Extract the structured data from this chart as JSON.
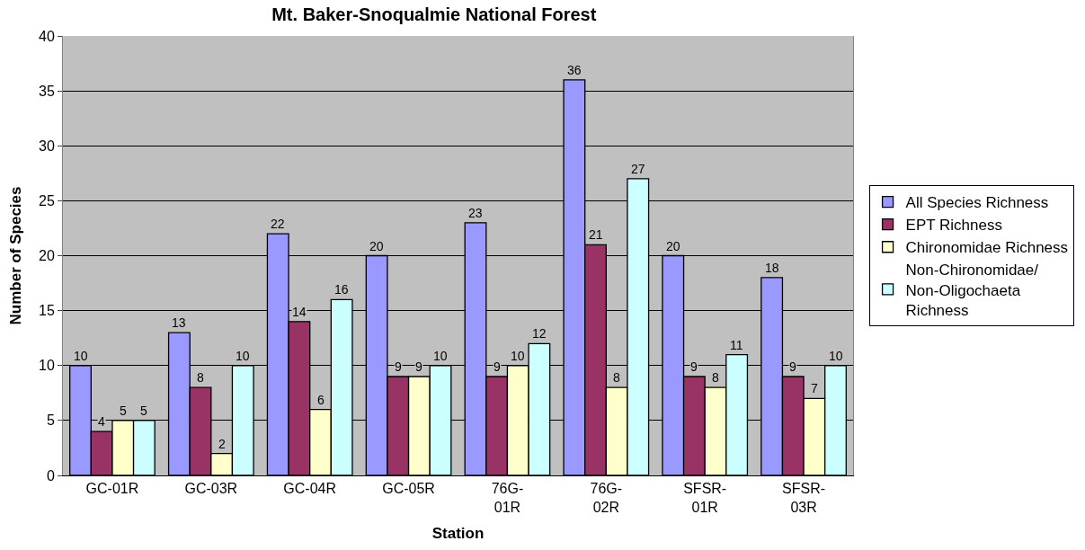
{
  "chart_data": {
    "type": "bar",
    "title": "Mt. Baker-Snoqualmie National Forest",
    "xlabel": "Station",
    "ylabel": "Number of Species",
    "categories": [
      "GC-01R",
      "GC-03R",
      "GC-04R",
      "GC-05R",
      "76G-01R",
      "76G-02R",
      "SFSR-01R",
      "SFSR-03R"
    ],
    "series": [
      {
        "name": "All Species Richness",
        "color": "#9999ff",
        "values": [
          10,
          13,
          22,
          20,
          23,
          36,
          20,
          18
        ]
      },
      {
        "name": "EPT Richness",
        "color": "#993366",
        "values": [
          4,
          8,
          14,
          9,
          9,
          21,
          9,
          9
        ]
      },
      {
        "name": "Chironomidae Richness",
        "color": "#ffffcc",
        "values": [
          5,
          2,
          6,
          9,
          10,
          8,
          8,
          7
        ]
      },
      {
        "name": "Non-Chironomidae/\nNon-Oligochaeta\nRichness",
        "color": "#ccffff",
        "values": [
          5,
          10,
          16,
          10,
          12,
          27,
          11,
          10
        ]
      }
    ],
    "ylim": [
      0,
      40
    ],
    "yticks": [
      0,
      5,
      10,
      15,
      20,
      25,
      30,
      35,
      40
    ],
    "grid": "y",
    "legend": "right",
    "data_labels": true
  }
}
